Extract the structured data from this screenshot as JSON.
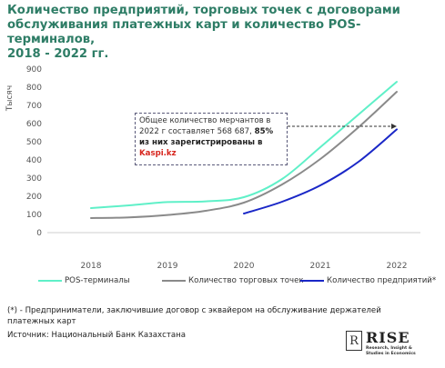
{
  "title": {
    "line1": "Количество предприятий, торговых точек с договорами",
    "line2": "обслуживания платежных карт и количество POS-терминалов,",
    "line3": "2018 - 2022 гг."
  },
  "annotation": {
    "line1": "Общее количество мерчантов в",
    "line2_prefix": "2022 г составляет 568 687,",
    "line2_bold": "85%",
    "line3": "из них зарегистрированы в",
    "brand": "Kaspi.kz"
  },
  "footnote": {
    "line1": "(*) - Предприниматели, заключившие договор с эквайером на обслуживание держателей",
    "line2": "платежных карт"
  },
  "source": "Источник: Национальный Банк Казахстана",
  "logo": {
    "mark": "R",
    "word": "RISE",
    "sub1": "Research, Insight &",
    "sub2": "Studies in Economics"
  },
  "chart_data": {
    "type": "line",
    "ylabel": "Тысяч",
    "categories": [
      "2018",
      "2019",
      "2020",
      "2021",
      "2022"
    ],
    "ylim": [
      0,
      900
    ],
    "yticks": [
      0,
      100,
      200,
      300,
      400,
      500,
      600,
      700,
      800,
      900
    ],
    "grid": false,
    "legend_position": "bottom",
    "annotation_marker_value": 585,
    "series": [
      {
        "name": "POS-терминалы",
        "color": "#5ff0c8",
        "x": [
          0,
          0.5,
          1,
          1.5,
          2,
          2.5,
          3,
          3.5,
          4
        ],
        "values": [
          135,
          150,
          168,
          172,
          195,
          295,
          470,
          650,
          830
        ]
      },
      {
        "name": "Количество торговых точек",
        "color": "#8a8a8a",
        "x": [
          0,
          0.5,
          1,
          1.5,
          2,
          2.5,
          3,
          3.5,
          4
        ],
        "values": [
          80,
          84,
          97,
          120,
          165,
          265,
          405,
          580,
          775
        ]
      },
      {
        "name": "Количество предприятий*",
        "color": "#1a27c7",
        "x": [
          2,
          2.5,
          3,
          3.5,
          4
        ],
        "values": [
          105,
          170,
          260,
          390,
          568
        ]
      }
    ]
  }
}
